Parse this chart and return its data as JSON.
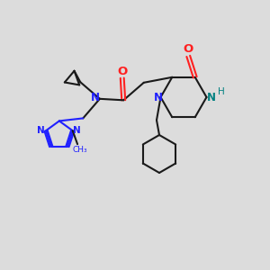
{
  "background_color": "#dcdcdc",
  "bond_color": "#1a1a1a",
  "nitrogen_color": "#2020ff",
  "oxygen_color": "#ff2020",
  "nh_color": "#008080",
  "line_width": 1.5,
  "figsize": [
    3.0,
    3.0
  ],
  "dpi": 100,
  "xlim": [
    0,
    10
  ],
  "ylim": [
    0,
    10
  ]
}
